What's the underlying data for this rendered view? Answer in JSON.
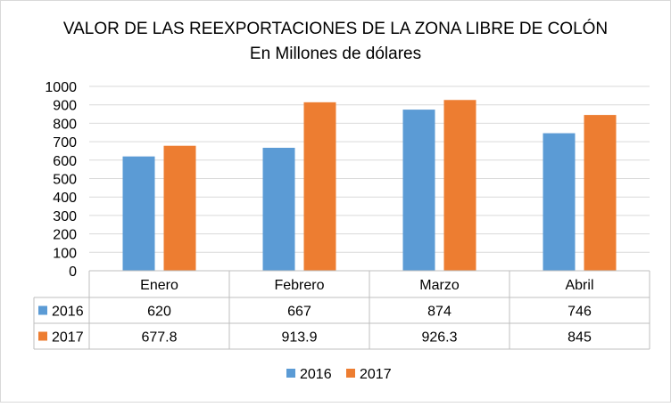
{
  "chart_data": {
    "type": "bar",
    "title": "VALOR DE LAS REEXPORTACIONES DE LA ZONA LIBRE DE COLÓN",
    "subtitle": "En Millones de dólares",
    "categories": [
      "Enero",
      "Febrero",
      "Marzo",
      "Abril"
    ],
    "series": [
      {
        "name": "2016",
        "color": "#5b9bd5",
        "values": [
          620,
          667,
          874,
          746
        ],
        "labels": [
          "620",
          "667",
          "874",
          "746"
        ]
      },
      {
        "name": "2017",
        "color": "#ed7d31",
        "values": [
          677.8,
          913.9,
          926.3,
          845
        ],
        "labels": [
          "677.8",
          "913.9",
          "926.3",
          "845"
        ]
      }
    ],
    "yticks": [
      "0",
      "100",
      "200",
      "300",
      "400",
      "500",
      "600",
      "700",
      "800",
      "900",
      "1000"
    ],
    "ylim": [
      0,
      1000
    ],
    "grid": true,
    "legend": "bottom",
    "data_table": true
  }
}
